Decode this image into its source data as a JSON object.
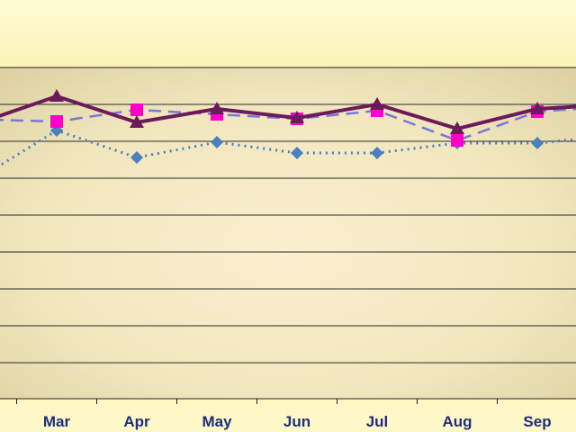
{
  "chart_data": {
    "type": "line",
    "categories": [
      "Mar",
      "Apr",
      "May",
      "Jun",
      "Jul",
      "Aug",
      "Sep"
    ],
    "grid": true,
    "series": [
      {
        "marker": "triangle",
        "line_style": "solid",
        "color": "#6b1a5a",
        "values": [
          1.0,
          0.74,
          0.88,
          0.79,
          0.92,
          0.68,
          0.88
        ]
      },
      {
        "marker": "square",
        "line_style": "dashed",
        "color": "#7777dd",
        "marker_color": "#ff00cc",
        "values": [
          0.75,
          0.87,
          0.82,
          0.78,
          0.86,
          0.57,
          0.85
        ]
      },
      {
        "marker": "diamond",
        "line_style": "dotted",
        "color": "#4a7fc0",
        "values": [
          0.66,
          0.4,
          0.55,
          0.44,
          0.44,
          0.54,
          0.54
        ]
      }
    ]
  }
}
